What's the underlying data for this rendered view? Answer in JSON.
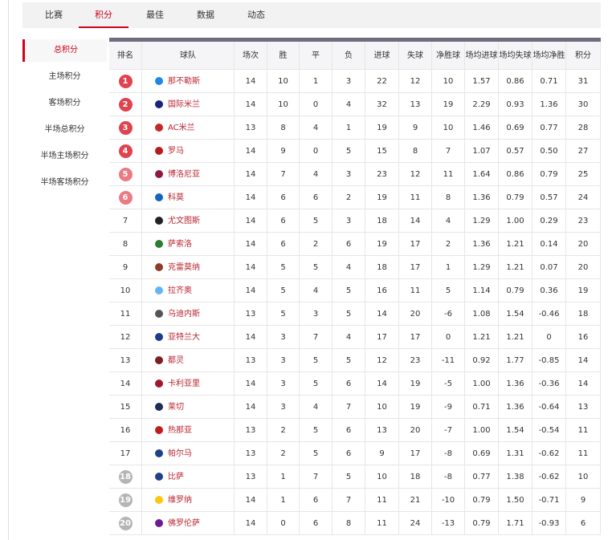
{
  "tabs": [
    "比赛",
    "积分",
    "最佳",
    "数据",
    "动态"
  ],
  "sidebar": [
    "总积分",
    "主场积分",
    "客场积分",
    "半场总积分",
    "半场主场积分",
    "半场客场积分"
  ],
  "table": {
    "headers": [
      "排名",
      "球队",
      "场次",
      "胜",
      "平",
      "负",
      "进球",
      "失球",
      "净胜球",
      "场均进球",
      "场均失球",
      "场均净胜",
      "积分"
    ],
    "rows": [
      [
        "1",
        "那不勒斯",
        "14",
        "10",
        "1",
        "3",
        "22",
        "12",
        "10",
        "1.57",
        "0.86",
        "0.71",
        "31"
      ],
      [
        "2",
        "国际米兰",
        "14",
        "10",
        "0",
        "4",
        "32",
        "13",
        "19",
        "2.29",
        "0.93",
        "1.36",
        "30"
      ],
      [
        "3",
        "AC米兰",
        "13",
        "8",
        "4",
        "1",
        "19",
        "9",
        "10",
        "1.46",
        "0.69",
        "0.77",
        "28"
      ],
      [
        "4",
        "罗马",
        "14",
        "9",
        "0",
        "5",
        "15",
        "8",
        "7",
        "1.07",
        "0.57",
        "0.50",
        "27"
      ],
      [
        "5",
        "博洛尼亚",
        "14",
        "7",
        "4",
        "3",
        "23",
        "12",
        "11",
        "1.64",
        "0.86",
        "0.79",
        "25"
      ],
      [
        "6",
        "科莫",
        "14",
        "6",
        "6",
        "2",
        "19",
        "11",
        "8",
        "1.36",
        "0.79",
        "0.57",
        "24"
      ],
      [
        "7",
        "尤文图斯",
        "14",
        "6",
        "5",
        "3",
        "18",
        "14",
        "4",
        "1.29",
        "1.00",
        "0.29",
        "23"
      ],
      [
        "8",
        "萨索洛",
        "14",
        "6",
        "2",
        "6",
        "19",
        "17",
        "2",
        "1.36",
        "1.21",
        "0.14",
        "20"
      ],
      [
        "9",
        "克雷莫纳",
        "14",
        "5",
        "5",
        "4",
        "18",
        "17",
        "1",
        "1.29",
        "1.21",
        "0.07",
        "20"
      ],
      [
        "10",
        "拉齐奥",
        "14",
        "5",
        "4",
        "5",
        "16",
        "11",
        "5",
        "1.14",
        "0.79",
        "0.36",
        "19"
      ],
      [
        "11",
        "乌迪内斯",
        "13",
        "5",
        "3",
        "5",
        "14",
        "20",
        "-6",
        "1.08",
        "1.54",
        "-0.46",
        "18"
      ],
      [
        "12",
        "亚特兰大",
        "14",
        "3",
        "7",
        "4",
        "17",
        "17",
        "0",
        "1.21",
        "1.21",
        "0",
        "16"
      ],
      [
        "13",
        "都灵",
        "13",
        "3",
        "5",
        "5",
        "12",
        "23",
        "-11",
        "0.92",
        "1.77",
        "-0.85",
        "14"
      ],
      [
        "14",
        "卡利亚里",
        "14",
        "3",
        "5",
        "6",
        "14",
        "19",
        "-5",
        "1.00",
        "1.36",
        "-0.36",
        "14"
      ],
      [
        "15",
        "莱切",
        "14",
        "3",
        "4",
        "7",
        "10",
        "19",
        "-9",
        "0.71",
        "1.36",
        "-0.64",
        "13"
      ],
      [
        "16",
        "热那亚",
        "13",
        "2",
        "5",
        "6",
        "13",
        "20",
        "-7",
        "1.00",
        "1.54",
        "-0.54",
        "11"
      ],
      [
        "17",
        "帕尔马",
        "13",
        "2",
        "5",
        "6",
        "9",
        "17",
        "-8",
        "0.69",
        "1.31",
        "-0.62",
        "11"
      ],
      [
        "18",
        "比萨",
        "13",
        "1",
        "7",
        "5",
        "10",
        "18",
        "-8",
        "0.77",
        "1.38",
        "-0.62",
        "10"
      ],
      [
        "19",
        "维罗纳",
        "14",
        "1",
        "6",
        "7",
        "11",
        "21",
        "-10",
        "0.79",
        "1.50",
        "-0.71",
        "9"
      ],
      [
        "20",
        "佛罗伦萨",
        "14",
        "0",
        "6",
        "8",
        "11",
        "24",
        "-13",
        "0.79",
        "1.71",
        "-0.93",
        "6"
      ]
    ]
  }
}
